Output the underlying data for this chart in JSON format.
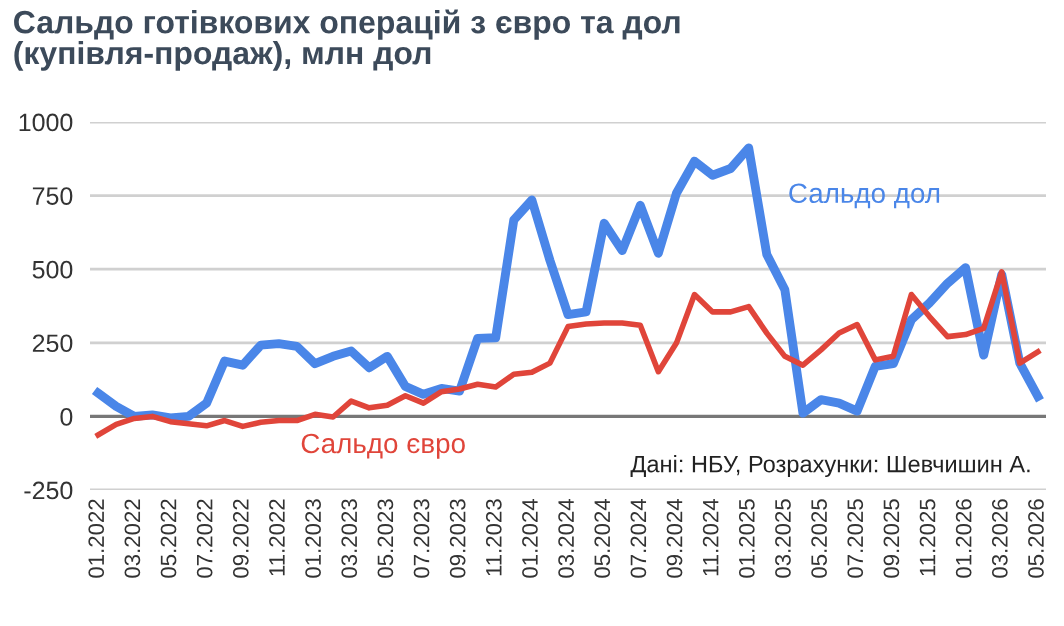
{
  "chart_data": {
    "type": "line",
    "title": "Сальдо готівкових операцій з євро та дол\n(купівля-продаж), млн дол",
    "categories": [
      "01.2022",
      null,
      "03.2022",
      null,
      "05.2022",
      null,
      "07.2022",
      null,
      "09.2022",
      null,
      "11.2022",
      null,
      "01.2023",
      null,
      "03.2023",
      null,
      "05.2023",
      null,
      "07.2023",
      null,
      "09.2023",
      null,
      "11.2023",
      null,
      "01.2024",
      null,
      "03.2024",
      null,
      "05.2024",
      null,
      "07.2024",
      null,
      "09.2024",
      null,
      "11.2024",
      null,
      "01.2025",
      null,
      "03.2025",
      null,
      "05.2025",
      null,
      "07.2025",
      null,
      "09.2025",
      null,
      "11.2025",
      null,
      "01.2026",
      null,
      "03.2026",
      null,
      "05.2026"
    ],
    "series": [
      {
        "name": "Сальдо дол",
        "color": "#4a86e8",
        "values": [
          79,
          34,
          0,
          5,
          -5,
          0,
          45,
          188,
          174,
          242,
          247,
          238,
          179,
          204,
          222,
          165,
          204,
          102,
          75,
          95,
          86,
          265,
          267,
          667,
          735,
          530,
          346,
          355,
          656,
          563,
          717,
          554,
          758,
          867,
          819,
          842,
          912,
          550,
          430,
          11,
          57,
          45,
          18,
          170,
          179,
          328,
          385,
          452,
          505,
          208,
          482,
          181,
          68
        ]
      },
      {
        "name": "Сальдо євро",
        "color": "#e0453a",
        "values": [
          -63,
          -27,
          -7,
          0,
          -18,
          -25,
          -32,
          -14,
          -34,
          -20,
          -14,
          -14,
          7,
          -2,
          52,
          29,
          38,
          70,
          45,
          84,
          93,
          109,
          100,
          143,
          150,
          181,
          305,
          314,
          317,
          317,
          310,
          152,
          249,
          414,
          355,
          355,
          373,
          283,
          204,
          174,
          226,
          283,
          312,
          192,
          204,
          414,
          339,
          271,
          278,
          299,
          491,
          181,
          219
        ]
      }
    ],
    "ylim": [
      -250,
      1000
    ],
    "yticks": [
      -250,
      0,
      250,
      500,
      750,
      1000
    ],
    "grid": "y",
    "legend": false,
    "marker": "none",
    "line_style": "solid",
    "annotations": [
      "Дані: НБУ, Розрахунки: Шевчишин А."
    ]
  }
}
